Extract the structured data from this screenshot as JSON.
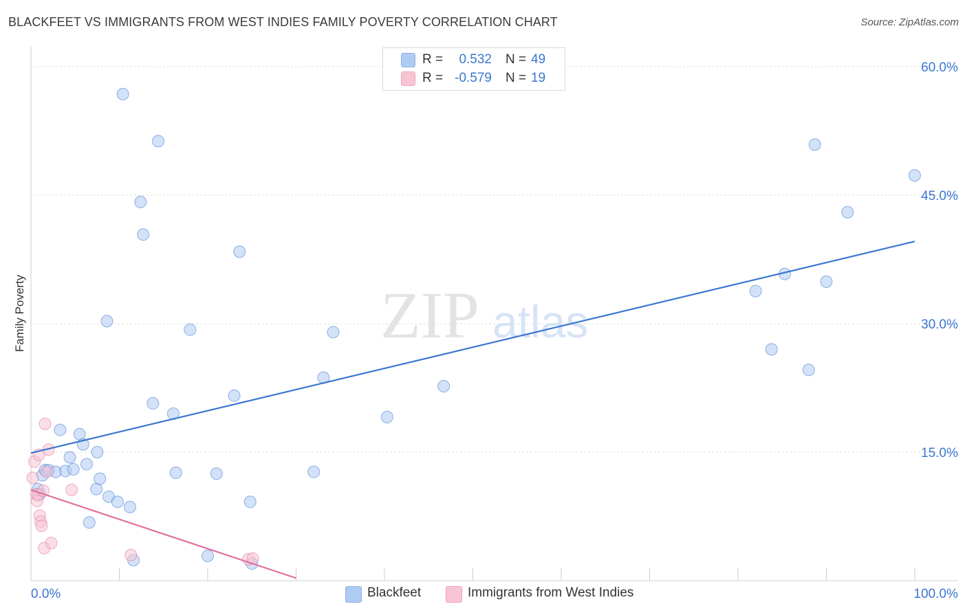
{
  "title": "BLACKFEET VS IMMIGRANTS FROM WEST INDIES FAMILY POVERTY CORRELATION CHART",
  "source": "Source: ZipAtlas.com",
  "watermark": {
    "zip": "ZIP",
    "atlas": "atlas"
  },
  "legend": {
    "rows": [
      {
        "r_label": "R =",
        "r_value": "0.532",
        "n_label": "N =",
        "n_value": "49",
        "color": "#aecbf3",
        "border": "#8ab0e8"
      },
      {
        "r_label": "R =",
        "r_value": "-0.579",
        "n_label": "N =",
        "n_value": "19",
        "color": "#f8c5d4",
        "border": "#f0a0b8"
      }
    ]
  },
  "bottom_legend": [
    {
      "label": "Blackfeet",
      "color": "#aecbf3",
      "border": "#8ab0e8"
    },
    {
      "label": "Immigrants from West Indies",
      "color": "#f8c5d4",
      "border": "#f0a0b8"
    }
  ],
  "chart_data": {
    "type": "scatter",
    "title": "BLACKFEET VS IMMIGRANTS FROM WEST INDIES FAMILY POVERTY CORRELATION CHART",
    "xlabel": "",
    "ylabel": "Family Poverty",
    "xlim": [
      0,
      100
    ],
    "ylim": [
      0,
      62
    ],
    "x_tick_labels": [
      "0.0%",
      "100.0%"
    ],
    "y_ticks": [
      15,
      30,
      45,
      60
    ],
    "y_tick_labels": [
      "15.0%",
      "30.0%",
      "45.0%",
      "60.0%"
    ],
    "grid": "horizontal dashed",
    "series": [
      {
        "name": "Blackfeet",
        "color": "#3a76d0",
        "fill": "#aecbf3",
        "points": [
          [
            0.8,
            10.7
          ],
          [
            1.0,
            10.1
          ],
          [
            1.3,
            12.3
          ],
          [
            1.6,
            12.9
          ],
          [
            2.0,
            12.9
          ],
          [
            2.8,
            12.7
          ],
          [
            3.3,
            17.6
          ],
          [
            3.9,
            12.8
          ],
          [
            4.4,
            14.4
          ],
          [
            4.8,
            13.0
          ],
          [
            5.5,
            17.1
          ],
          [
            5.9,
            15.9
          ],
          [
            6.3,
            13.6
          ],
          [
            6.6,
            6.8
          ],
          [
            7.5,
            15.0
          ],
          [
            7.4,
            10.7
          ],
          [
            7.8,
            11.9
          ],
          [
            8.6,
            30.3
          ],
          [
            8.8,
            9.8
          ],
          [
            9.8,
            9.2
          ],
          [
            10.4,
            56.8
          ],
          [
            11.2,
            8.6
          ],
          [
            11.6,
            2.4
          ],
          [
            12.4,
            44.2
          ],
          [
            12.7,
            40.4
          ],
          [
            13.8,
            20.7
          ],
          [
            14.4,
            51.3
          ],
          [
            16.1,
            19.5
          ],
          [
            16.4,
            12.6
          ],
          [
            18.0,
            29.3
          ],
          [
            20.0,
            2.9
          ],
          [
            21.0,
            12.5
          ],
          [
            23.0,
            21.6
          ],
          [
            23.6,
            38.4
          ],
          [
            24.8,
            9.2
          ],
          [
            25.0,
            2.0
          ],
          [
            32.0,
            12.7
          ],
          [
            33.1,
            23.7
          ],
          [
            34.2,
            29.0
          ],
          [
            40.3,
            19.1
          ],
          [
            46.7,
            22.7
          ],
          [
            82.0,
            33.8
          ],
          [
            83.8,
            27.0
          ],
          [
            85.3,
            35.8
          ],
          [
            88.0,
            24.6
          ],
          [
            88.7,
            50.9
          ],
          [
            90.0,
            34.9
          ],
          [
            92.4,
            43.0
          ],
          [
            100.0,
            47.3
          ]
        ],
        "trend_line": [
          [
            0,
            14.9
          ],
          [
            100,
            39.6
          ]
        ]
      },
      {
        "name": "Immigrants from West Indies",
        "color": "#e0709a",
        "fill": "#f8c5d4",
        "points": [
          [
            0.2,
            12.0
          ],
          [
            0.4,
            13.9
          ],
          [
            0.6,
            10.1
          ],
          [
            0.7,
            9.3
          ],
          [
            0.8,
            10.0
          ],
          [
            0.9,
            14.7
          ],
          [
            1.0,
            7.6
          ],
          [
            1.1,
            6.9
          ],
          [
            1.2,
            6.4
          ],
          [
            1.4,
            10.5
          ],
          [
            1.5,
            3.8
          ],
          [
            1.6,
            18.3
          ],
          [
            2.0,
            15.3
          ],
          [
            2.3,
            4.4
          ],
          [
            4.6,
            10.6
          ],
          [
            11.3,
            3.0
          ],
          [
            24.6,
            2.5
          ],
          [
            25.1,
            2.6
          ],
          [
            1.8,
            12.7
          ]
        ],
        "trend_line": [
          [
            0,
            10.6
          ],
          [
            30,
            0.3
          ]
        ]
      }
    ]
  }
}
